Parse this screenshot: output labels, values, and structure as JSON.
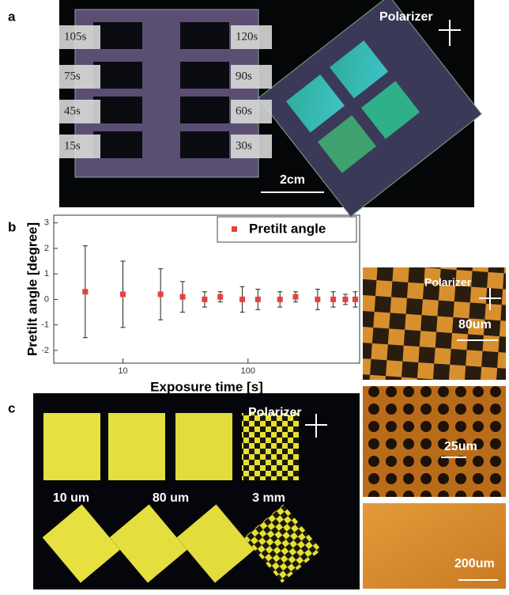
{
  "panel_a": {
    "label": "a",
    "times": [
      "105s",
      "120s",
      "75s",
      "90s",
      "45s",
      "60s",
      "15s",
      "30s"
    ],
    "polarizer": "Polarizer",
    "scale": "2cm"
  },
  "panel_b": {
    "label": "b"
  },
  "chart_data": {
    "type": "errorbar",
    "xlabel": "Exposure time [s]",
    "ylabel": "Pretilt angle [degree]",
    "xscale": "log",
    "xlim": [
      2.8,
      780
    ],
    "xticks": [
      10,
      100
    ],
    "ylim": [
      -2.5,
      3.3
    ],
    "yticks": [
      -2,
      -1,
      0,
      1,
      2,
      3
    ],
    "legend": "upper right",
    "series": [
      {
        "name": "Pretilt angle",
        "color": "#e8413c",
        "x": [
          5,
          10,
          20,
          30,
          45,
          60,
          90,
          120,
          180,
          240,
          360,
          480,
          600,
          720
        ],
        "values": [
          0.3,
          0.2,
          0.2,
          0.1,
          0.0,
          0.1,
          0.0,
          0.0,
          0.0,
          0.1,
          0.0,
          0.0,
          0.0,
          0.0
        ],
        "errors": [
          1.8,
          1.3,
          1.0,
          0.6,
          0.3,
          0.2,
          0.5,
          0.4,
          0.3,
          0.2,
          0.4,
          0.3,
          0.2,
          0.3
        ]
      }
    ]
  },
  "panel_c": {
    "label": "c",
    "polarizer": "Polarizer",
    "sizes": [
      "10 um",
      "80 um",
      "3 mm"
    ]
  },
  "side": {
    "polarizer": "Polarizer",
    "scales": [
      "80um",
      "25um",
      "200um"
    ]
  }
}
